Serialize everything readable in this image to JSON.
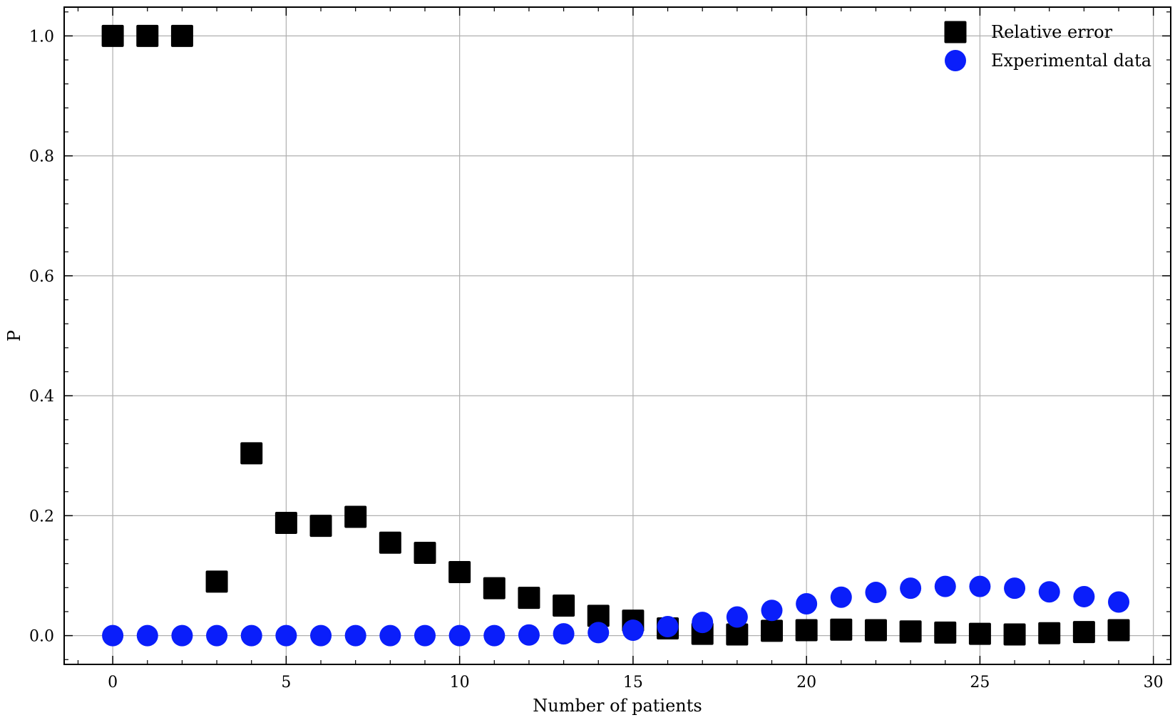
{
  "chart_data": {
    "type": "scatter",
    "title": "",
    "xlabel": "Number of patients",
    "ylabel": "P",
    "xlim": [
      -1.4,
      30.5
    ],
    "ylim": [
      -0.048,
      1.048
    ],
    "xticks": [
      0,
      5,
      10,
      15,
      20,
      25,
      30
    ],
    "yticks": [
      0.0,
      0.2,
      0.4,
      0.6,
      0.8,
      1.0
    ],
    "xtick_labels": [
      "0",
      "5",
      "10",
      "15",
      "20",
      "25",
      "30"
    ],
    "ytick_labels": [
      "0.0",
      "0.2",
      "0.4",
      "0.6",
      "0.8",
      "1.0"
    ],
    "grid": true,
    "legend_position": "top-right",
    "series": [
      {
        "name": "Relative error",
        "marker": "square",
        "color": "#000000",
        "x": [
          0,
          1,
          2,
          3,
          4,
          5,
          6,
          7,
          8,
          9,
          10,
          11,
          12,
          13,
          14,
          15,
          16,
          17,
          18,
          19,
          20,
          21,
          22,
          23,
          24,
          25,
          26,
          27,
          28,
          29
        ],
        "y": [
          1.0,
          1.0,
          1.0,
          0.09,
          0.304,
          0.188,
          0.183,
          0.198,
          0.155,
          0.138,
          0.106,
          0.079,
          0.063,
          0.05,
          0.033,
          0.025,
          0.012,
          0.003,
          0.002,
          0.008,
          0.009,
          0.01,
          0.009,
          0.007,
          0.005,
          0.003,
          0.002,
          0.004,
          0.006,
          0.009
        ]
      },
      {
        "name": "Experimental data",
        "marker": "circle",
        "color": "#0a1efa",
        "x": [
          0,
          1,
          2,
          3,
          4,
          5,
          6,
          7,
          8,
          9,
          10,
          11,
          12,
          13,
          14,
          15,
          16,
          17,
          18,
          19,
          20,
          21,
          22,
          23,
          24,
          25,
          26,
          27,
          28,
          29
        ],
        "y": [
          0,
          0,
          0,
          0,
          0,
          0,
          0,
          0,
          0,
          0,
          0,
          0,
          0.001,
          0.003,
          0.005,
          0.009,
          0.015,
          0.022,
          0.031,
          0.042,
          0.053,
          0.064,
          0.072,
          0.079,
          0.082,
          0.082,
          0.079,
          0.073,
          0.065,
          0.056
        ]
      }
    ]
  }
}
